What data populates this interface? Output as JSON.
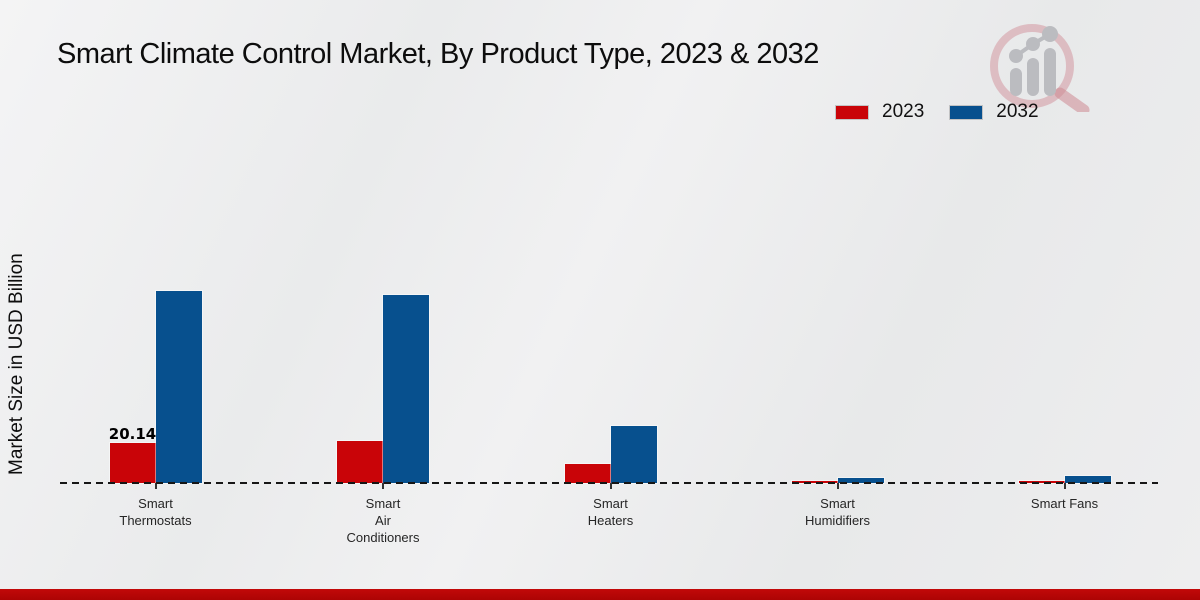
{
  "chart_data": {
    "type": "bar",
    "title": "Smart Climate Control Market, By Product Type, 2023 & 2032",
    "ylabel": "Market Size in USD Billion",
    "xlabel": "",
    "categories": [
      "Smart Thermostats",
      "Smart Air Conditioners",
      "Smart Heaters",
      "Smart Humidifiers",
      "Smart Fans"
    ],
    "category_label_lines": [
      [
        "Smart",
        "Thermostats"
      ],
      [
        "Smart",
        "Air",
        "Conditioners"
      ],
      [
        "Smart",
        "Heaters"
      ],
      [
        "Smart",
        "Humidifiers"
      ],
      [
        "Smart Fans"
      ]
    ],
    "series": [
      {
        "name": "2023",
        "color": "#c90408",
        "values": [
          20.14,
          21.2,
          9.8,
          1.2,
          1.2
        ]
      },
      {
        "name": "2032",
        "color": "#07508e",
        "values": [
          96.7,
          94.6,
          28.7,
          2.4,
          3.5
        ]
      }
    ],
    "annotations": [
      {
        "series": "2023",
        "category_index": 0,
        "text": "20.14"
      }
    ],
    "legend_position": "top-right",
    "grid": false,
    "baseline_style": "dashed",
    "ylim_estimate": [
      0,
      100
    ]
  },
  "branding": {
    "logo_name": "magnifier-bar-chart-logo",
    "footer_color": "#b20707"
  },
  "colors": {
    "series_2023": "#c90408",
    "series_2032": "#07508e",
    "baseline": "#161616",
    "background_light": "#f2f3f4",
    "background_dark": "#e8e9ea",
    "footer_strip": "#b20707"
  }
}
